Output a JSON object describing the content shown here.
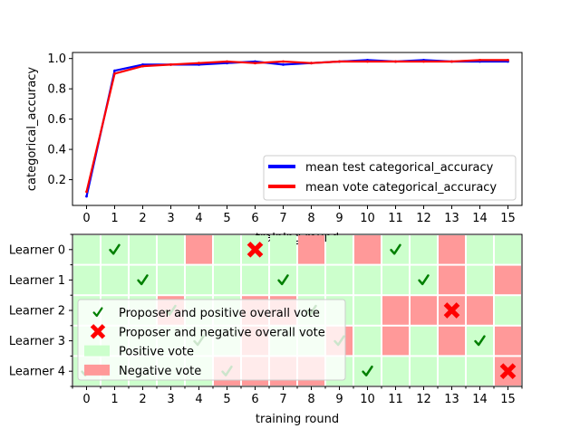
{
  "chart_data": [
    {
      "type": "line",
      "x": [
        0,
        1,
        2,
        3,
        4,
        5,
        6,
        7,
        8,
        9,
        10,
        11,
        12,
        13,
        14,
        15
      ],
      "xticks": [
        "0",
        "1",
        "2",
        "3",
        "4",
        "5",
        "6",
        "7",
        "8",
        "9",
        "10",
        "11",
        "12",
        "13",
        "14",
        "15"
      ],
      "xlabel": "training round",
      "ylabel": "categorical_accuracy",
      "ylim": [
        0.03,
        1.04
      ],
      "yticks": [
        "0.2",
        "0.4",
        "0.6",
        "0.8",
        "1.0"
      ],
      "ytick_values": [
        0.2,
        0.4,
        0.6,
        0.8,
        1.0
      ],
      "legend_position": "lower-right",
      "series": [
        {
          "name": "mean test categorical_accuracy",
          "color": "#0000ff",
          "values": [
            0.09,
            0.92,
            0.96,
            0.96,
            0.96,
            0.97,
            0.98,
            0.96,
            0.97,
            0.98,
            0.99,
            0.98,
            0.99,
            0.98,
            0.98,
            0.98
          ]
        },
        {
          "name": "mean vote categorical_accuracy",
          "color": "#ff0000",
          "values": [
            0.12,
            0.9,
            0.95,
            0.96,
            0.97,
            0.98,
            0.97,
            0.98,
            0.97,
            0.98,
            0.98,
            0.98,
            0.98,
            0.98,
            0.99,
            0.99
          ]
        }
      ]
    },
    {
      "type": "heatmap",
      "x": [
        0,
        1,
        2,
        3,
        4,
        5,
        6,
        7,
        8,
        9,
        10,
        11,
        12,
        13,
        14,
        15
      ],
      "xticks": [
        "0",
        "1",
        "2",
        "3",
        "4",
        "5",
        "6",
        "7",
        "8",
        "9",
        "10",
        "11",
        "12",
        "13",
        "14",
        "15"
      ],
      "xlabel": "training round",
      "rows": [
        "Learner 0",
        "Learner 1",
        "Learner 2",
        "Learner 3",
        "Learner 4"
      ],
      "cells": [
        [
          "P",
          "P",
          "P",
          "P",
          "N",
          "P",
          "P",
          "P",
          "N",
          "P",
          "N",
          "P",
          "P",
          "N",
          "P",
          "P"
        ],
        [
          "P",
          "P",
          "P",
          "P",
          "P",
          "P",
          "P",
          "P",
          "P",
          "P",
          "P",
          "P",
          "P",
          "N",
          "P",
          "N"
        ],
        [
          "P",
          "P",
          "P",
          "N",
          "P",
          "P",
          "N",
          "N",
          "P",
          "P",
          "P",
          "N",
          "N",
          "N",
          "N",
          "P"
        ],
        [
          "P",
          "P",
          "P",
          "P",
          "P",
          "P",
          "N",
          "P",
          "P",
          "N",
          "P",
          "N",
          "P",
          "N",
          "P",
          "N"
        ],
        [
          "P",
          "P",
          "P",
          "P",
          "P",
          "N",
          "N",
          "N",
          "N",
          "P",
          "P",
          "P",
          "P",
          "P",
          "P",
          "N"
        ]
      ],
      "proposers": [
        {
          "round": 0,
          "learner": 4,
          "overall": "positive"
        },
        {
          "round": 1,
          "learner": 0,
          "overall": "positive"
        },
        {
          "round": 2,
          "learner": 1,
          "overall": "positive"
        },
        {
          "round": 3,
          "learner": 2,
          "overall": "positive"
        },
        {
          "round": 4,
          "learner": 3,
          "overall": "positive"
        },
        {
          "round": 5,
          "learner": 4,
          "overall": "positive"
        },
        {
          "round": 6,
          "learner": 0,
          "overall": "negative"
        },
        {
          "round": 7,
          "learner": 1,
          "overall": "positive"
        },
        {
          "round": 8,
          "learner": 2,
          "overall": "positive"
        },
        {
          "round": 9,
          "learner": 3,
          "overall": "positive"
        },
        {
          "round": 10,
          "learner": 4,
          "overall": "positive"
        },
        {
          "round": 11,
          "learner": 0,
          "overall": "positive"
        },
        {
          "round": 12,
          "learner": 1,
          "overall": "positive"
        },
        {
          "round": 13,
          "learner": 2,
          "overall": "negative"
        },
        {
          "round": 14,
          "learner": 3,
          "overall": "positive"
        },
        {
          "round": 15,
          "learner": 4,
          "overall": "negative"
        }
      ],
      "legend_position": "lower-left",
      "legend": [
        {
          "label": "Proposer and positive overall vote",
          "symbol": "check"
        },
        {
          "label": "Proposer and negative overall vote",
          "symbol": "cross"
        },
        {
          "label": "Positive vote",
          "symbol": "patch"
        },
        {
          "label": "Negative vote",
          "symbol": "patch"
        }
      ],
      "colors": {
        "positive": "#ccffcc",
        "negative": "#ff9999",
        "check": "#007f00",
        "cross": "#ff0000"
      }
    }
  ]
}
